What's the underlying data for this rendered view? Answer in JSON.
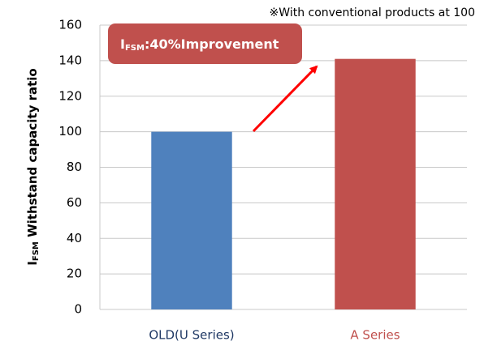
{
  "chart_data": {
    "type": "bar",
    "note": "※With conventional products at 100",
    "annotation": {
      "parts": [
        "I",
        "FSM",
        ":40%Improvement"
      ]
    },
    "y_label": {
      "parts": [
        "I",
        "FSM",
        " Withstand capacity ratio"
      ]
    },
    "categories": [
      "OLD(U Series)",
      "A Series"
    ],
    "values": [
      100,
      141
    ],
    "colors": [
      "#4f81bd",
      "#c0504d"
    ],
    "category_label_colors": [
      "#1f3864",
      "#c0504d"
    ],
    "ylim": [
      0,
      160
    ],
    "yticks": [
      0,
      20,
      40,
      60,
      80,
      100,
      120,
      140,
      160
    ],
    "grid": true
  }
}
